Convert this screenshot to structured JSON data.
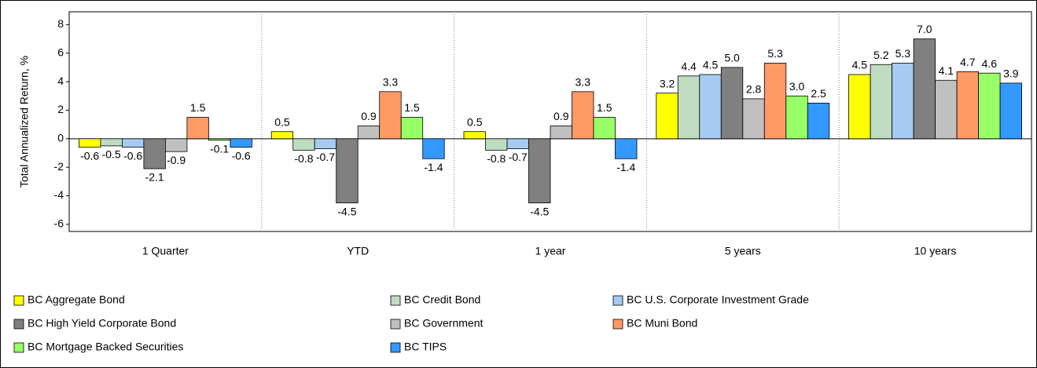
{
  "chart_data": {
    "type": "bar",
    "y_label": "Total Annualized Return, %",
    "categories": [
      "1 Quarter",
      "YTD",
      "1 year",
      "5 years",
      "10 years"
    ],
    "series": [
      {
        "name": "BC Aggregate Bond",
        "color": "#ffff00",
        "values": [
          -0.6,
          0.5,
          0.5,
          3.2,
          4.5
        ],
        "value_labels": [
          "-0.6",
          "0.5",
          "0.5",
          "3.2",
          "4.5"
        ]
      },
      {
        "name": "BC Credit Bond",
        "color": "#c0dcc0",
        "values": [
          -0.5,
          -0.8,
          -0.8,
          4.4,
          5.2
        ],
        "value_labels": [
          "-0.5",
          "-0.8",
          "-0.8",
          "4.4",
          "5.2"
        ]
      },
      {
        "name": "BC U.S. Corporate Investment Grade",
        "color": "#a6caf0",
        "values": [
          -0.6,
          -0.7,
          -0.7,
          4.5,
          5.3
        ],
        "value_labels": [
          "-0.6",
          "-0.7",
          "-0.7",
          "4.5",
          "5.3"
        ]
      },
      {
        "name": "BC High Yield Corporate Bond",
        "color": "#808080",
        "values": [
          -2.1,
          -4.5,
          -4.5,
          5.0,
          7.0
        ],
        "value_labels": [
          "-2.1",
          "-4.5",
          "-4.5",
          "5.0",
          "7.0"
        ]
      },
      {
        "name": "BC Government",
        "color": "#c0c0c0",
        "values": [
          -0.9,
          0.9,
          0.9,
          2.8,
          4.1
        ],
        "value_labels": [
          "-0.9",
          "0.9",
          "0.9",
          "2.8",
          "4.1"
        ]
      },
      {
        "name": "BC Muni Bond",
        "color": "#ff9966",
        "values": [
          1.5,
          3.3,
          3.3,
          5.3,
          4.7
        ],
        "value_labels": [
          "1.5",
          "3.3",
          "3.3",
          "5.3",
          "4.7"
        ]
      },
      {
        "name": "BC Mortgage Backed Securities",
        "color": "#99ff66",
        "values": [
          -0.1,
          1.5,
          1.5,
          3.0,
          4.6
        ],
        "value_labels": [
          "-0.1",
          "1.5",
          "1.5",
          "3.0",
          "4.6"
        ]
      },
      {
        "name": "BC TIPS",
        "color": "#3399ff",
        "values": [
          -0.6,
          -1.4,
          -1.4,
          2.5,
          3.9
        ],
        "value_labels": [
          "-0.6",
          "-1.4",
          "-1.4",
          "2.5",
          "3.9"
        ]
      }
    ],
    "ylim": [
      -6.5,
      8.9
    ],
    "yticks": [
      -6,
      -4,
      -2,
      0,
      2,
      4,
      6,
      8
    ],
    "category_separators": true,
    "legend": "bottom"
  }
}
